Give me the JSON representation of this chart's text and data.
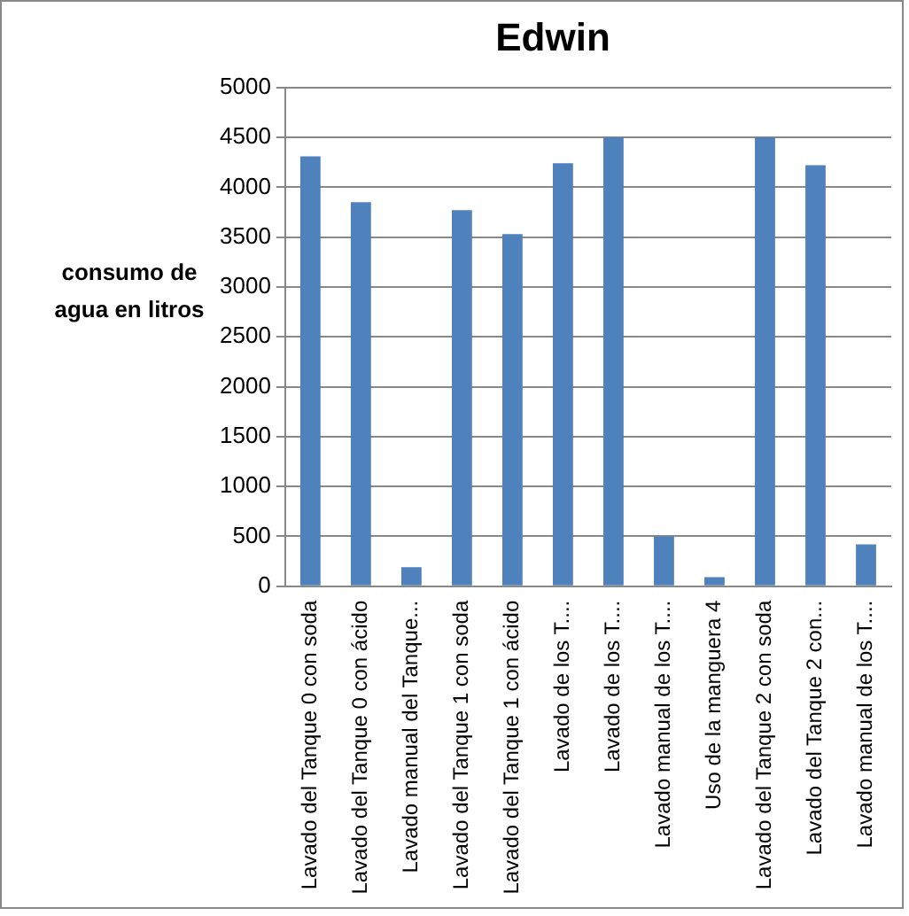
{
  "chart_data": {
    "type": "bar",
    "title": "Edwin",
    "ylabel": "consumo de agua en litros",
    "categories": [
      "Lavado del Tanque 0 con soda",
      "Lavado del Tanque 0 con ácido",
      "Lavado manual del Tanque...",
      "Lavado del Tanque 1 con soda",
      "Lavado del Tanque 1 con ácido",
      "Lavado de los T....",
      "Lavado de los T....",
      "Lavado manual de los T....",
      "Uso de la manguera 4",
      "Lavado del Tanque 2 con soda",
      "Lavado del Tanque 2 con...",
      "Lavado manual de los T...."
    ],
    "values": [
      4310,
      3850,
      190,
      3770,
      3530,
      4240,
      4500,
      500,
      90,
      4500,
      4220,
      420
    ],
    "color": "#4f81bd",
    "ylim": [
      0,
      5000
    ],
    "yticks": [
      0,
      500,
      1000,
      1500,
      2000,
      2500,
      3000,
      3500,
      4000,
      4500,
      5000
    ],
    "grid": "y"
  }
}
